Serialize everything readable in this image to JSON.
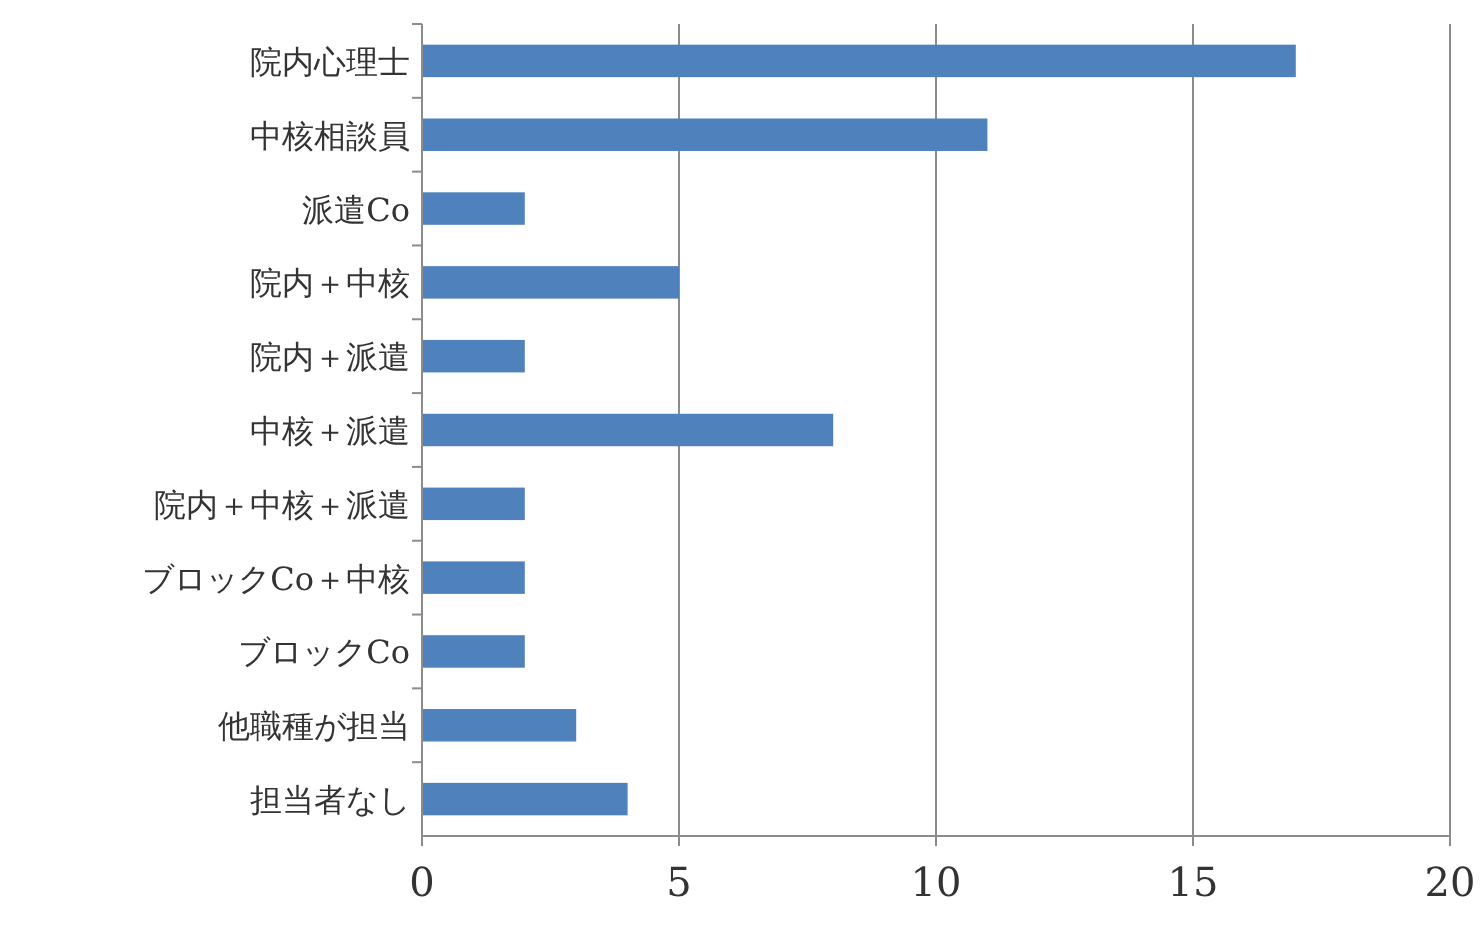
{
  "chart_data": {
    "type": "bar",
    "orientation": "horizontal",
    "categories": [
      "院内心理士",
      "中核相談員",
      "派遣Co",
      "院内＋中核",
      "院内＋派遣",
      "中核＋派遣",
      "院内＋中核＋派遣",
      "ブロックCo＋中核",
      "ブロックCo",
      "他職種が担当",
      "担当者なし"
    ],
    "values": [
      17,
      11,
      2,
      5,
      2,
      8,
      2,
      2,
      2,
      3,
      4
    ],
    "color": "#4f81bd",
    "xlim": [
      0,
      20
    ],
    "xticks": [
      0,
      5,
      10,
      15,
      20
    ],
    "grid": "x"
  }
}
